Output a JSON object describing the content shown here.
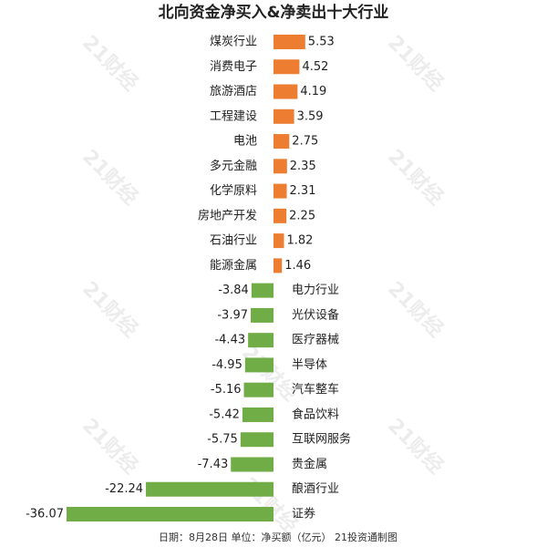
{
  "chart_data": {
    "type": "bar",
    "orientation": "horizontal",
    "title": "北向资金净买入&净卖出十大行业",
    "footer": "日期：8月28日 单位：净买额（亿元） 21投资通制图",
    "watermark": "21财经",
    "categories": [
      "煤炭行业",
      "消费电子",
      "旅游酒店",
      "工程建设",
      "电池",
      "多元金融",
      "化学原料",
      "房地产开发",
      "石油行业",
      "能源金属",
      "电力行业",
      "光伏设备",
      "医疗器械",
      "半导体",
      "汽车整车",
      "食品饮料",
      "互联网服务",
      "贵金属",
      "酿酒行业",
      "证券"
    ],
    "values": [
      5.53,
      4.52,
      4.19,
      3.59,
      2.75,
      2.35,
      2.31,
      2.25,
      1.82,
      1.46,
      -3.84,
      -3.97,
      -4.43,
      -4.95,
      -5.16,
      -5.42,
      -5.75,
      -7.43,
      -22.24,
      -36.07
    ],
    "positive_color": "#ed7d31",
    "negative_color": "#70ad47"
  }
}
